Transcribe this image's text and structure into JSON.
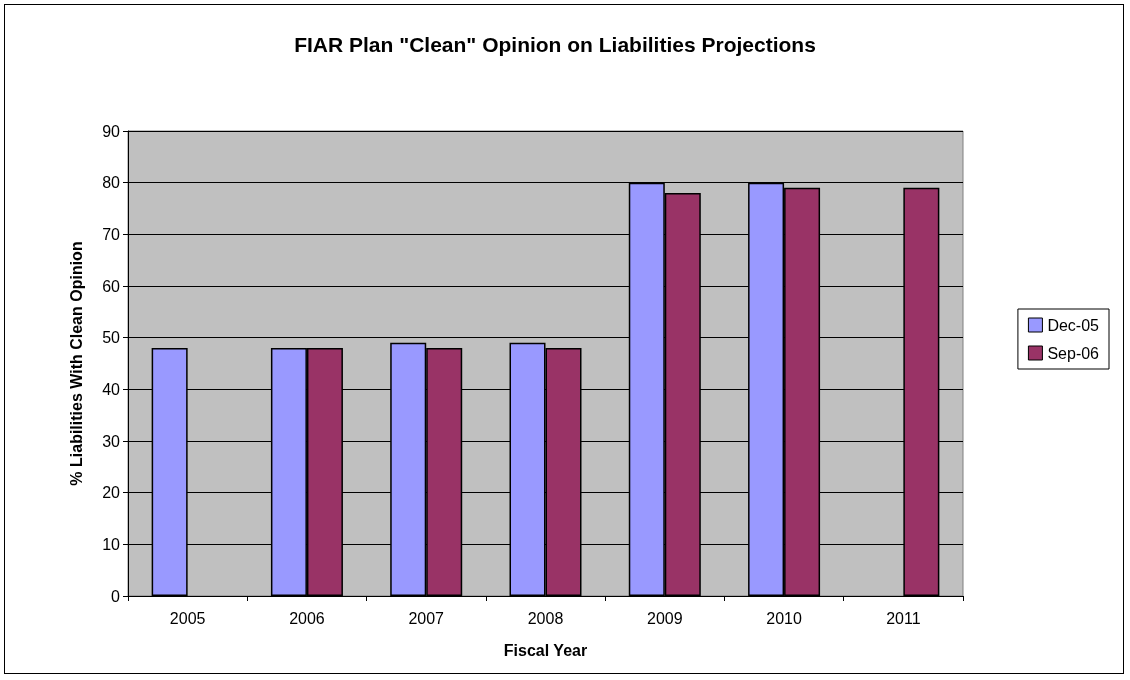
{
  "chart_data": {
    "type": "bar",
    "title": "FIAR Plan \"Clean\" Opinion on Liabilities Projections",
    "xlabel": "Fiscal Year",
    "ylabel": "% Liabilities With Clean Opinion",
    "categories": [
      "2005",
      "2006",
      "2007",
      "2008",
      "2009",
      "2010",
      "2011"
    ],
    "series": [
      {
        "name": "Dec-05",
        "color": "#9999ff",
        "values": [
          48,
          48,
          49,
          49,
          80,
          80,
          null
        ]
      },
      {
        "name": "Sep-06",
        "color": "#993366",
        "values": [
          null,
          48,
          48,
          48,
          78,
          79,
          79
        ]
      }
    ],
    "ylim": [
      0,
      90
    ],
    "yticks": [
      0,
      10,
      20,
      30,
      40,
      50,
      60,
      70,
      80,
      90
    ],
    "grid": "y",
    "legend": "right"
  }
}
